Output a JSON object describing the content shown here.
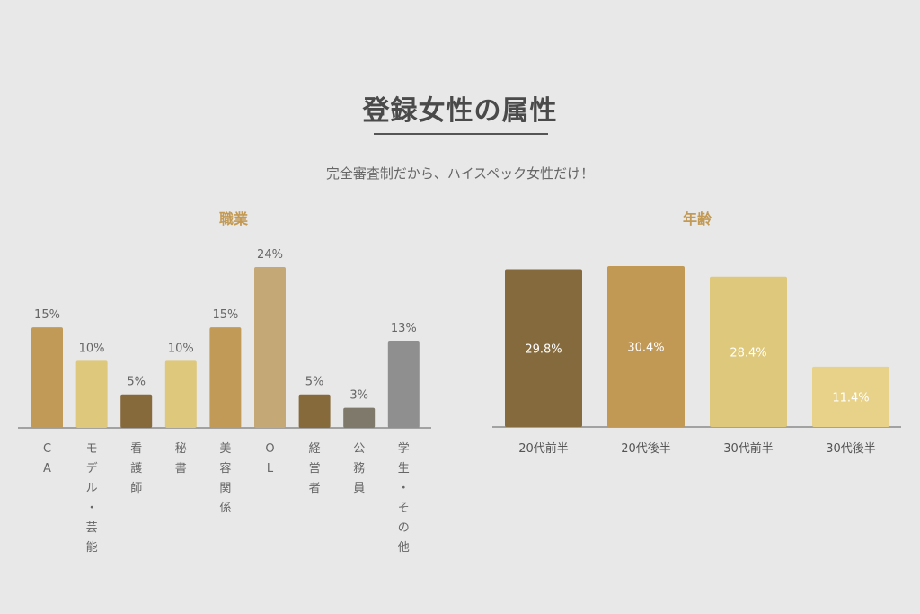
{
  "header": {
    "title": "登録女性の属性",
    "subtitle": "完全審査制だから、ハイスペック女性だけ！"
  },
  "chart_data": [
    {
      "type": "bar",
      "title": "職業",
      "categories": [
        "CA",
        "モデル・芸能",
        "看護師",
        "秘書",
        "美容関係",
        "OL",
        "経営者",
        "公務員",
        "学生・その他"
      ],
      "values": [
        15,
        10,
        5,
        10,
        15,
        24,
        5,
        3,
        13
      ],
      "value_labels": [
        "15%",
        "10%",
        "5%",
        "10%",
        "15%",
        "24%",
        "5%",
        "3%",
        "13%"
      ],
      "colors": [
        "#c19a58",
        "#dec87c",
        "#876a3c",
        "#dec87c",
        "#c19a58",
        "#c4a876",
        "#876a3c",
        "#7f796b",
        "#8f8f8f"
      ],
      "label_orientation": "vertical",
      "ylim": [
        0,
        24
      ]
    },
    {
      "type": "bar",
      "title": "年齢",
      "categories": [
        "20代前半",
        "20代後半",
        "30代前半",
        "30代後半"
      ],
      "values": [
        29.8,
        30.4,
        28.4,
        11.4
      ],
      "value_labels": [
        "29.8%",
        "30.4%",
        "28.4%",
        "11.4%"
      ],
      "colors": [
        "#846a3d",
        "#c19854",
        "#dec87c",
        "#e8d28a"
      ],
      "ylim": [
        0,
        30.4
      ]
    }
  ]
}
